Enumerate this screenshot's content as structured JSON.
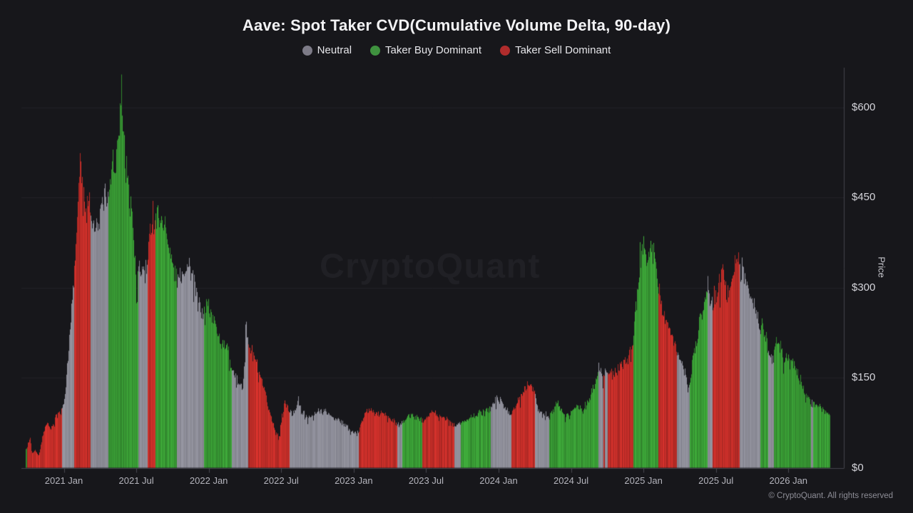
{
  "page": {
    "title": "Aave: Spot Taker CVD(Cumulative Volume Delta, 90-day)",
    "watermark": "CryptoQuant",
    "footer": "© CryptoQuant. All rights reserved"
  },
  "legend": {
    "items": [
      {
        "label": "Neutral",
        "color": "#7d7b87"
      },
      {
        "label": "Taker Buy Dominant",
        "color": "#3f923f"
      },
      {
        "label": "Taker Sell Dominant",
        "color": "#b02c2c"
      }
    ]
  },
  "chart_data": {
    "type": "bar",
    "title": "Aave: Spot Taker CVD(Cumulative Volume Delta, 90-day)",
    "ylabel": "Price",
    "unit": "USD",
    "ylim": [
      0,
      660
    ],
    "grid": true,
    "legend_position": "top-center",
    "y_ticks": [
      {
        "label": "$0",
        "value": 0
      },
      {
        "label": "$150",
        "value": 150
      },
      {
        "label": "$300",
        "value": 300
      },
      {
        "label": "$450",
        "value": 450
      },
      {
        "label": "$600",
        "value": 600
      }
    ],
    "x_axis": {
      "tick_labels": [
        "2021 Jan",
        "2021 Jul",
        "2022 Jan",
        "2022 Jul",
        "2023 Jan",
        "2023 Jul",
        "2024 Jan",
        "2024 Jul",
        "2025 Jan",
        "2025 Jul",
        "2026 Jan"
      ],
      "mapping_note": "sample x values are pixel positions; 2021 Jan tick = 89.5px, each 6 months = 101.58px, data spans ~2020 Oct to ~2026 Apr"
    },
    "regimes": {
      "n": "Neutral",
      "g": "Taker Buy Dominant",
      "r": "Taker Sell Dominant"
    },
    "regime_colors": {
      "n": "#8d8d98",
      "g": "#389934",
      "r": "#c12d28"
    },
    "series": {
      "name": "AAVE daily price colored by spot taker CVD regime",
      "samples_format": "[x_px, price_usd, regime]",
      "samples": [
        [
          36,
          30,
          "g"
        ],
        [
          38,
          36,
          "r"
        ],
        [
          42,
          50,
          "r"
        ],
        [
          45,
          24,
          "r"
        ],
        [
          49,
          30,
          "r"
        ],
        [
          54,
          20,
          "r"
        ],
        [
          59,
          50,
          "r"
        ],
        [
          63,
          68,
          "r"
        ],
        [
          67,
          74,
          "r"
        ],
        [
          71,
          62,
          "r"
        ],
        [
          75,
          79,
          "r"
        ],
        [
          79,
          85,
          "r"
        ],
        [
          83,
          90,
          "r"
        ],
        [
          87,
          97,
          "n"
        ],
        [
          91,
          120,
          "n"
        ],
        [
          95,
          180,
          "n"
        ],
        [
          99,
          250,
          "n"
        ],
        [
          102,
          300,
          "n"
        ],
        [
          104,
          330,
          "r"
        ],
        [
          107,
          392,
          "r"
        ],
        [
          110,
          472,
          "r"
        ],
        [
          112,
          533,
          "r"
        ],
        [
          114,
          492,
          "r"
        ],
        [
          117,
          464,
          "r"
        ],
        [
          120,
          428,
          "r"
        ],
        [
          123,
          450,
          "r"
        ],
        [
          125,
          458,
          "r"
        ],
        [
          127,
          416,
          "n"
        ],
        [
          131,
          386,
          "n"
        ],
        [
          135,
          400,
          "n"
        ],
        [
          139,
          418,
          "n"
        ],
        [
          143,
          452,
          "n"
        ],
        [
          146,
          476,
          "n"
        ],
        [
          149,
          446,
          "n"
        ],
        [
          152,
          462,
          "g"
        ],
        [
          155,
          472,
          "g"
        ],
        [
          158,
          528,
          "g"
        ],
        [
          161,
          482,
          "g"
        ],
        [
          164,
          560,
          "g"
        ],
        [
          167,
          592,
          "g"
        ],
        [
          169,
          612,
          "g"
        ],
        [
          170,
          630,
          "g"
        ],
        [
          172,
          580,
          "g"
        ],
        [
          174,
          532,
          "g"
        ],
        [
          176,
          506,
          "g"
        ],
        [
          179,
          468,
          "g"
        ],
        [
          183,
          441,
          "g"
        ],
        [
          186,
          402,
          "g"
        ],
        [
          189,
          330,
          "g"
        ],
        [
          191,
          312,
          "g"
        ],
        [
          194,
          324,
          "n"
        ],
        [
          199,
          332,
          "n"
        ],
        [
          204,
          322,
          "n"
        ],
        [
          207,
          345,
          "r"
        ],
        [
          210,
          398,
          "r"
        ],
        [
          213,
          426,
          "r"
        ],
        [
          216,
          414,
          "r"
        ],
        [
          218,
          412,
          "g"
        ],
        [
          221,
          420,
          "g"
        ],
        [
          224,
          419,
          "g"
        ],
        [
          228,
          406,
          "g"
        ],
        [
          232,
          411,
          "g"
        ],
        [
          236,
          366,
          "g"
        ],
        [
          240,
          353,
          "g"
        ],
        [
          244,
          324,
          "g"
        ],
        [
          248,
          311,
          "n"
        ],
        [
          253,
          316,
          "n"
        ],
        [
          258,
          329,
          "n"
        ],
        [
          263,
          339,
          "n"
        ],
        [
          268,
          329,
          "n"
        ],
        [
          273,
          303,
          "n"
        ],
        [
          278,
          279,
          "n"
        ],
        [
          283,
          252,
          "n"
        ],
        [
          286,
          262,
          "g"
        ],
        [
          289,
          277,
          "g"
        ],
        [
          293,
          268,
          "g"
        ],
        [
          298,
          249,
          "g"
        ],
        [
          303,
          236,
          "g"
        ],
        [
          309,
          209,
          "g"
        ],
        [
          315,
          200,
          "g"
        ],
        [
          321,
          191,
          "g"
        ],
        [
          325,
          163,
          "n"
        ],
        [
          330,
          151,
          "n"
        ],
        [
          335,
          139,
          "n"
        ],
        [
          340,
          132,
          "n"
        ],
        [
          343,
          200,
          "n"
        ],
        [
          344,
          244,
          "n"
        ],
        [
          346,
          215,
          "n"
        ],
        [
          348,
          210,
          "r"
        ],
        [
          353,
          191,
          "r"
        ],
        [
          358,
          177,
          "r"
        ],
        [
          364,
          153,
          "r"
        ],
        [
          370,
          129,
          "r"
        ],
        [
          376,
          101,
          "r"
        ],
        [
          382,
          76,
          "r"
        ],
        [
          387,
          59,
          "r"
        ],
        [
          391,
          53,
          "r"
        ],
        [
          395,
          86,
          "r"
        ],
        [
          399,
          109,
          "r"
        ],
        [
          403,
          99,
          "r"
        ],
        [
          406,
          91,
          "n"
        ],
        [
          410,
          88,
          "n"
        ],
        [
          414,
          101,
          "n"
        ],
        [
          418,
          113,
          "n"
        ],
        [
          422,
          97,
          "n"
        ],
        [
          428,
          87,
          "n"
        ],
        [
          435,
          83,
          "n"
        ],
        [
          442,
          90,
          "n"
        ],
        [
          449,
          96,
          "n"
        ],
        [
          456,
          93,
          "n"
        ],
        [
          463,
          87,
          "n"
        ],
        [
          470,
          81,
          "n"
        ],
        [
          477,
          77,
          "n"
        ],
        [
          484,
          71,
          "n"
        ],
        [
          490,
          63,
          "n"
        ],
        [
          496,
          58,
          "n"
        ],
        [
          500,
          56,
          "n"
        ],
        [
          503,
          63,
          "r"
        ],
        [
          507,
          79,
          "r"
        ],
        [
          512,
          91,
          "r"
        ],
        [
          517,
          96,
          "r"
        ],
        [
          523,
          93,
          "r"
        ],
        [
          529,
          89,
          "r"
        ],
        [
          535,
          92,
          "r"
        ],
        [
          541,
          87,
          "r"
        ],
        [
          547,
          81,
          "r"
        ],
        [
          553,
          75,
          "r"
        ],
        [
          557,
          71,
          "n"
        ],
        [
          561,
          73,
          "n"
        ],
        [
          564,
          77,
          "g"
        ],
        [
          570,
          83,
          "g"
        ],
        [
          576,
          87,
          "g"
        ],
        [
          582,
          87,
          "g"
        ],
        [
          588,
          83,
          "g"
        ],
        [
          592,
          80,
          "r"
        ],
        [
          598,
          87,
          "r"
        ],
        [
          604,
          93,
          "r"
        ],
        [
          610,
          90,
          "r"
        ],
        [
          616,
          87,
          "r"
        ],
        [
          622,
          84,
          "r"
        ],
        [
          628,
          81,
          "r"
        ],
        [
          633,
          74,
          "r"
        ],
        [
          637,
          71,
          "n"
        ],
        [
          642,
          74,
          "n"
        ],
        [
          646,
          74,
          "g"
        ],
        [
          653,
          79,
          "g"
        ],
        [
          661,
          84,
          "g"
        ],
        [
          669,
          89,
          "g"
        ],
        [
          677,
          92,
          "g"
        ],
        [
          684,
          97,
          "g"
        ],
        [
          688,
          101,
          "n"
        ],
        [
          693,
          111,
          "n"
        ],
        [
          698,
          117,
          "n"
        ],
        [
          704,
          107,
          "n"
        ],
        [
          710,
          97,
          "n"
        ],
        [
          714,
          90,
          "n"
        ],
        [
          717,
          93,
          "r"
        ],
        [
          723,
          103,
          "r"
        ],
        [
          729,
          117,
          "r"
        ],
        [
          735,
          130,
          "r"
        ],
        [
          740,
          140,
          "r"
        ],
        [
          745,
          134,
          "r"
        ],
        [
          748,
          126,
          "r"
        ],
        [
          750,
          120,
          "n"
        ],
        [
          754,
          97,
          "n"
        ],
        [
          760,
          87,
          "n"
        ],
        [
          766,
          90,
          "n"
        ],
        [
          770,
          84,
          "g"
        ],
        [
          776,
          97,
          "g"
        ],
        [
          782,
          107,
          "g"
        ],
        [
          788,
          94,
          "g"
        ],
        [
          794,
          87,
          "g"
        ],
        [
          800,
          90,
          "g"
        ],
        [
          806,
          104,
          "g"
        ],
        [
          812,
          100,
          "g"
        ],
        [
          818,
          97,
          "g"
        ],
        [
          824,
          112,
          "g"
        ],
        [
          830,
          127,
          "g"
        ],
        [
          835,
          143,
          "g"
        ],
        [
          837,
          155,
          "g"
        ],
        [
          839,
          167,
          "n"
        ],
        [
          843,
          159,
          "n"
        ],
        [
          846,
          151,
          "r"
        ],
        [
          848,
          161,
          "n"
        ],
        [
          852,
          161,
          "r"
        ],
        [
          858,
          159,
          "r"
        ],
        [
          864,
          162,
          "r"
        ],
        [
          870,
          167,
          "r"
        ],
        [
          876,
          177,
          "r"
        ],
        [
          881,
          186,
          "r"
        ],
        [
          884,
          196,
          "r"
        ],
        [
          886,
          213,
          "r"
        ],
        [
          888,
          226,
          "g"
        ],
        [
          891,
          262,
          "g"
        ],
        [
          894,
          305,
          "g"
        ],
        [
          897,
          349,
          "g"
        ],
        [
          900,
          383,
          "g"
        ],
        [
          903,
          372,
          "g"
        ],
        [
          906,
          343,
          "g"
        ],
        [
          909,
          357,
          "g"
        ],
        [
          912,
          367,
          "g"
        ],
        [
          915,
          375,
          "g"
        ],
        [
          918,
          353,
          "g"
        ],
        [
          921,
          323,
          "g"
        ],
        [
          923,
          305,
          "r"
        ],
        [
          926,
          277,
          "r"
        ],
        [
          930,
          258,
          "r"
        ],
        [
          934,
          243,
          "r"
        ],
        [
          938,
          228,
          "r"
        ],
        [
          942,
          217,
          "r"
        ],
        [
          946,
          207,
          "r"
        ],
        [
          949,
          192,
          "n"
        ],
        [
          953,
          180,
          "n"
        ],
        [
          957,
          172,
          "n"
        ],
        [
          961,
          153,
          "n"
        ],
        [
          964,
          132,
          "n"
        ],
        [
          967,
          147,
          "g"
        ],
        [
          970,
          171,
          "g"
        ],
        [
          973,
          196,
          "g"
        ],
        [
          977,
          218,
          "g"
        ],
        [
          980,
          239,
          "g"
        ],
        [
          983,
          255,
          "g"
        ],
        [
          986,
          269,
          "g"
        ],
        [
          989,
          284,
          "g"
        ],
        [
          991,
          295,
          "g"
        ],
        [
          992,
          306,
          "n"
        ],
        [
          995,
          282,
          "n"
        ],
        [
          997,
          274,
          "n"
        ],
        [
          999,
          273,
          "r"
        ],
        [
          1003,
          287,
          "r"
        ],
        [
          1007,
          302,
          "r"
        ],
        [
          1011,
          321,
          "r"
        ],
        [
          1013,
          325,
          "r"
        ],
        [
          1016,
          302,
          "r"
        ],
        [
          1019,
          283,
          "r"
        ],
        [
          1023,
          299,
          "r"
        ],
        [
          1027,
          318,
          "r"
        ],
        [
          1030,
          338,
          "r"
        ],
        [
          1033,
          352,
          "r"
        ],
        [
          1035,
          357,
          "r"
        ],
        [
          1037,
          332,
          "n"
        ],
        [
          1041,
          327,
          "n"
        ],
        [
          1045,
          312,
          "n"
        ],
        [
          1049,
          297,
          "n"
        ],
        [
          1053,
          282,
          "n"
        ],
        [
          1058,
          262,
          "n"
        ],
        [
          1063,
          247,
          "n"
        ],
        [
          1066,
          234,
          "g"
        ],
        [
          1070,
          231,
          "g"
        ],
        [
          1074,
          215,
          "g"
        ],
        [
          1077,
          197,
          "n"
        ],
        [
          1081,
          191,
          "n"
        ],
        [
          1085,
          200,
          "g"
        ],
        [
          1089,
          211,
          "g"
        ],
        [
          1094,
          198,
          "g"
        ],
        [
          1099,
          187,
          "g"
        ],
        [
          1104,
          183,
          "g"
        ],
        [
          1109,
          174,
          "g"
        ],
        [
          1114,
          167,
          "g"
        ],
        [
          1119,
          153,
          "g"
        ],
        [
          1124,
          141,
          "g"
        ],
        [
          1129,
          123,
          "g"
        ],
        [
          1133,
          114,
          "g"
        ],
        [
          1137,
          108,
          "n"
        ],
        [
          1140,
          102,
          "g"
        ],
        [
          1144,
          100,
          "g"
        ],
        [
          1147,
          106,
          "g"
        ],
        [
          1151,
          100,
          "g"
        ],
        [
          1155,
          94,
          "g"
        ],
        [
          1159,
          90,
          "g"
        ],
        [
          1163,
          86,
          "g"
        ]
      ]
    }
  }
}
